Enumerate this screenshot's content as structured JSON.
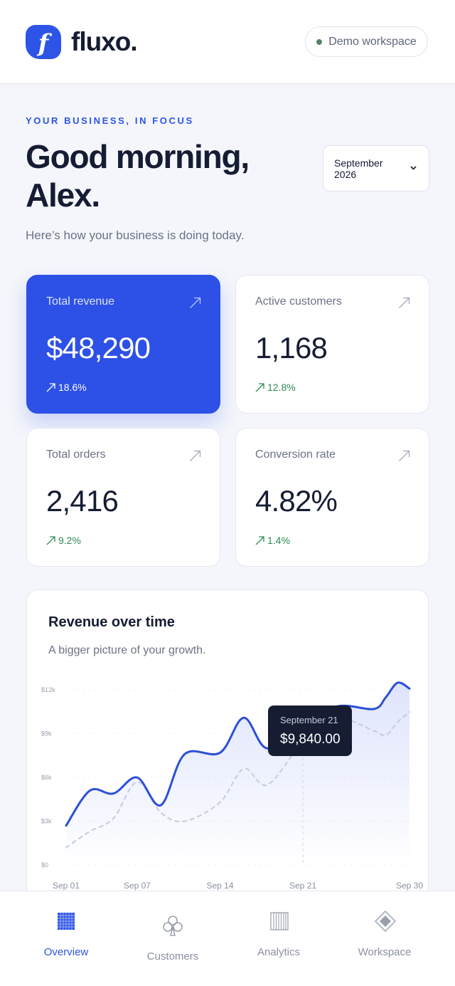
{
  "header": {
    "logo_letter": "f",
    "brand_name": "fluxo.",
    "workspace_label": "Demo workspace"
  },
  "hero": {
    "eyebrow": "YOUR BUSINESS, IN FOCUS",
    "greeting": "Good morning, Alex.",
    "subtitle": "Here’s how your business is doing today.",
    "date_select": {
      "selected": "September 2026"
    }
  },
  "stats": [
    {
      "label": "Total revenue",
      "value": "$48,290",
      "delta": "18.6%",
      "highlighted": true
    },
    {
      "label": "Active customers",
      "value": "1,168",
      "delta": "12.8%",
      "highlighted": false
    },
    {
      "label": "Total orders",
      "value": "2,416",
      "delta": "9.2%",
      "highlighted": false
    },
    {
      "label": "Conversion rate",
      "value": "4.82%",
      "delta": "1.4%",
      "highlighted": false
    }
  ],
  "revenue_chart": {
    "title": "Revenue over time",
    "subtitle": "A bigger picture of your growth.",
    "tooltip": {
      "date": "September 21",
      "value": "$9,840.00"
    },
    "chart_data": {
      "type": "line",
      "x": [
        1,
        3,
        5,
        7,
        9,
        11,
        14,
        16,
        18,
        21,
        24,
        27,
        28,
        29,
        30
      ],
      "x_tick_labels": [
        "Sep 01",
        "Sep 07",
        "Sep 14",
        "Sep 21",
        "Sep 30"
      ],
      "x_tick_values": [
        1,
        7,
        14,
        21,
        30
      ],
      "y_tick_labels": [
        "$0",
        "$3k",
        "$6k",
        "$9k",
        "$12k"
      ],
      "y_tick_values": [
        0,
        3000,
        6000,
        9000,
        12000
      ],
      "ylim": [
        0,
        12500
      ],
      "series": [
        {
          "values": [
            2700,
            5100,
            4900,
            6000,
            4100,
            7600,
            7700,
            10100,
            8000,
            9840,
            10900,
            10700,
            11500,
            12500,
            12100
          ],
          "style": "solid",
          "color": "#2d4fd6"
        },
        {
          "values": [
            1200,
            2300,
            3200,
            5700,
            3600,
            3000,
            4300,
            6600,
            5500,
            8400,
            10000,
            9200,
            8900,
            9800,
            10500
          ],
          "style": "dashed",
          "color": "#c9cde0"
        }
      ],
      "grid": true
    }
  },
  "bottom_nav": [
    {
      "label": "Overview",
      "icon": "grid-icon",
      "active": true
    },
    {
      "label": "Customers",
      "icon": "club-icon",
      "active": false
    },
    {
      "label": "Analytics",
      "icon": "bars-icon",
      "active": false
    },
    {
      "label": "Workspace",
      "icon": "diamond-icon",
      "active": false
    }
  ]
}
